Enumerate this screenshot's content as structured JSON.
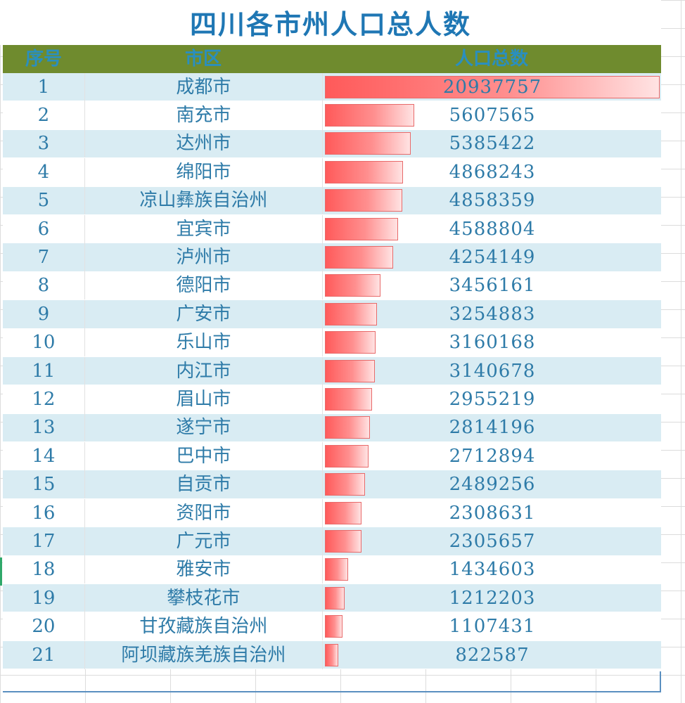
{
  "title": "四川各市州人口总人数",
  "headers": {
    "index": "序号",
    "city": "市区",
    "population": "人口总数"
  },
  "rows": [
    {
      "index": "1",
      "city": "成都市",
      "population": "20937757",
      "value": 20937757
    },
    {
      "index": "2",
      "city": "南充市",
      "population": "5607565",
      "value": 5607565
    },
    {
      "index": "3",
      "city": "达州市",
      "population": "5385422",
      "value": 5385422
    },
    {
      "index": "4",
      "city": "绵阳市",
      "population": "4868243",
      "value": 4868243
    },
    {
      "index": "5",
      "city": "凉山彝族自治州",
      "population": "4858359",
      "value": 4858359
    },
    {
      "index": "6",
      "city": "宜宾市",
      "population": "4588804",
      "value": 4588804
    },
    {
      "index": "7",
      "city": "泸州市",
      "population": "4254149",
      "value": 4254149
    },
    {
      "index": "8",
      "city": "德阳市",
      "population": "3456161",
      "value": 3456161
    },
    {
      "index": "9",
      "city": "广安市",
      "population": "3254883",
      "value": 3254883
    },
    {
      "index": "10",
      "city": "乐山市",
      "population": "3160168",
      "value": 3160168
    },
    {
      "index": "11",
      "city": "内江市",
      "population": "3140678",
      "value": 3140678
    },
    {
      "index": "12",
      "city": "眉山市",
      "population": "2955219",
      "value": 2955219
    },
    {
      "index": "13",
      "city": "遂宁市",
      "population": "2814196",
      "value": 2814196
    },
    {
      "index": "14",
      "city": "巴中市",
      "population": "2712894",
      "value": 2712894
    },
    {
      "index": "15",
      "city": "自贡市",
      "population": "2489256",
      "value": 2489256
    },
    {
      "index": "16",
      "city": "资阳市",
      "population": "2308631",
      "value": 2308631
    },
    {
      "index": "17",
      "city": "广元市",
      "population": "2305657",
      "value": 2305657
    },
    {
      "index": "18",
      "city": "雅安市",
      "population": "1434603",
      "value": 1434603
    },
    {
      "index": "19",
      "city": "攀枝花市",
      "population": "1212203",
      "value": 1212203
    },
    {
      "index": "20",
      "city": "甘孜藏族自治州",
      "population": "1107431",
      "value": 1107431
    },
    {
      "index": "21",
      "city": "阿坝藏族羌族自治州",
      "population": "822587",
      "value": 822587
    }
  ],
  "colors": {
    "title": "#1f77b4",
    "header_bg": "#6f8b2e",
    "header_text": "#2a8fbf",
    "row_alt": "#d9ecf3",
    "bar_start": "#ff5a5a",
    "text": "#2e7ba8"
  }
}
